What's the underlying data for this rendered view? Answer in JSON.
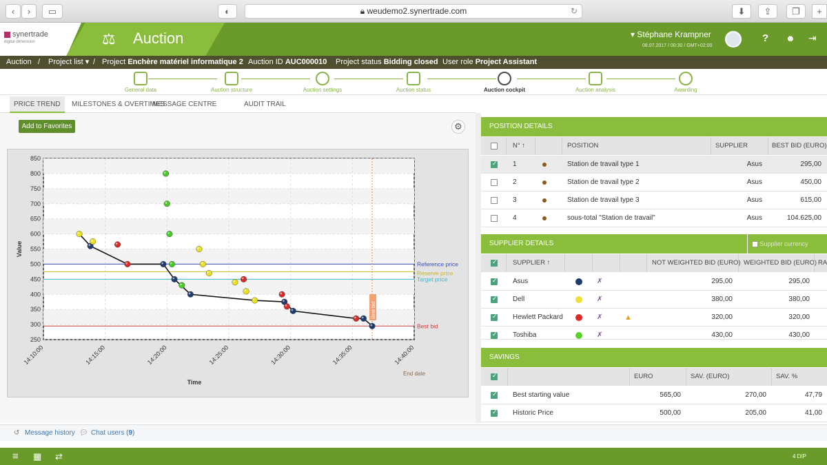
{
  "browser": {
    "url": "weudemo2.synertrade.com"
  },
  "header": {
    "logo": "synertrade",
    "logo_sub": "digital dimension",
    "module": "Auction",
    "user": "Stéphane Krampner",
    "datetime": "08.07.2017 / 00:30 / GMT+02:00"
  },
  "breadcrumb": {
    "root": "Auction",
    "sep": "/",
    "project_list": "Project list",
    "project_label": "Project",
    "project_value": "Enchère matériel informatique 2",
    "auction_id_label": "Auction ID",
    "auction_id_value": "AUC000010",
    "status_label": "Project status",
    "status_value": "Bidding closed",
    "role_label": "User role",
    "role_value": "Project Assistant"
  },
  "wizard": [
    "General data",
    "Auction structure",
    "Auction settings",
    "Auction status",
    "Auction cockpit",
    "Auction analysis",
    "Awarding"
  ],
  "tabs": [
    "PRICE TREND",
    "MILESTONES & OVERTIMES",
    "MESSAGE CENTRE",
    "AUDIT TRAIL"
  ],
  "favorites_button": "Add to Favorites",
  "chart_data": {
    "type": "scatter",
    "xlabel": "Time",
    "ylabel": "Value",
    "ylim": [
      250,
      850
    ],
    "yticks": [
      250,
      300,
      350,
      400,
      450,
      500,
      550,
      600,
      650,
      700,
      750,
      800,
      850
    ],
    "xticks": [
      "14:10:00",
      "14:15:00",
      "14:20:00",
      "14:25:00",
      "14:30:00",
      "14:35:00",
      "14:40:00"
    ],
    "reference_lines": [
      {
        "name": "Reference price",
        "value": 500,
        "color": "#3a4fb8"
      },
      {
        "name": "Reserve price",
        "value": 475,
        "color": "#c8b62a"
      },
      {
        "name": "Target price",
        "value": 450,
        "color": "#3ab8c8"
      },
      {
        "name": "Best bid",
        "value": 295,
        "color": "#c83a3a"
      }
    ],
    "end_label": "End date",
    "best_bid_vlabel": "Best bid",
    "series": [
      {
        "color": "#1f3c6e",
        "points": [
          [
            13.8,
            560
          ],
          [
            19.7,
            500
          ],
          [
            20.6,
            450
          ],
          [
            21.9,
            400
          ],
          [
            29.5,
            375
          ],
          [
            30.2,
            345
          ],
          [
            35.9,
            320
          ],
          [
            36.6,
            295
          ]
        ],
        "line": true
      },
      {
        "color": "#d42a2a",
        "points": [
          [
            16.0,
            565
          ],
          [
            16.8,
            500
          ],
          [
            26.2,
            450
          ],
          [
            29.3,
            400
          ],
          [
            29.7,
            360
          ],
          [
            35.3,
            320
          ]
        ]
      },
      {
        "color": "#e8e020",
        "points": [
          [
            12.9,
            600
          ],
          [
            14.0,
            575
          ],
          [
            22.6,
            550
          ],
          [
            22.9,
            500
          ],
          [
            23.4,
            470
          ],
          [
            25.5,
            440
          ],
          [
            26.4,
            410
          ],
          [
            27.1,
            380
          ]
        ]
      },
      {
        "color": "#4ac82a",
        "points": [
          [
            19.9,
            800
          ],
          [
            20.0,
            700
          ],
          [
            20.2,
            600
          ],
          [
            20.4,
            500
          ],
          [
            21.2,
            430
          ]
        ]
      }
    ],
    "best_line": [
      [
        12.9,
        600
      ],
      [
        13.8,
        560
      ],
      [
        16.8,
        500
      ],
      [
        19.7,
        500
      ],
      [
        20.6,
        450
      ],
      [
        21.9,
        400
      ],
      [
        27.1,
        380
      ],
      [
        29.5,
        375
      ],
      [
        30.2,
        345
      ],
      [
        35.3,
        320
      ],
      [
        35.9,
        320
      ],
      [
        36.6,
        295
      ]
    ]
  },
  "position": {
    "title": "POSITION DETAILS",
    "cols": [
      "N°",
      "POSITION",
      "SUPPLIER",
      "BEST BID (EURO)"
    ],
    "rows": [
      {
        "n": "1",
        "position": "Station de travail type 1",
        "supplier": "Asus",
        "bid": "295,00",
        "checked": true
      },
      {
        "n": "2",
        "position": "Station de travail type 2",
        "supplier": "Asus",
        "bid": "450,00",
        "checked": false
      },
      {
        "n": "3",
        "position": "Station de travail type 3",
        "supplier": "Asus",
        "bid": "615,00",
        "checked": false
      },
      {
        "n": "4",
        "position": "sous-total \"Station de travail\"",
        "supplier": "Asus",
        "bid": "104.625,00",
        "checked": false
      }
    ]
  },
  "supplier": {
    "title": "SUPPLIER DETAILS",
    "currency": "Supplier currency",
    "cols": [
      "SUPPLIER",
      "NOT WEIGHTED BID (EURO)",
      "WEIGHTED BID (EURO)",
      "RA"
    ],
    "rows": [
      {
        "name": "Asus",
        "color": "#1f3c6e",
        "nw": "295,00",
        "w": "295,00",
        "warn": false
      },
      {
        "name": "Dell",
        "color": "#f0e03a",
        "nw": "380,00",
        "w": "380,00",
        "warn": false
      },
      {
        "name": "Hewlett Packard",
        "color": "#e02a2a",
        "nw": "320,00",
        "w": "320,00",
        "warn": true
      },
      {
        "name": "Toshiba",
        "color": "#5ad02a",
        "nw": "430,00",
        "w": "430,00",
        "warn": false
      }
    ]
  },
  "savings": {
    "title": "SAVINGS",
    "cols": [
      "EURO",
      "SAV. (EURO)",
      "SAV. %"
    ],
    "rows": [
      {
        "label": "Best starting value",
        "euro": "565,00",
        "sav": "270,00",
        "pct": "47,79"
      },
      {
        "label": "Historic Price",
        "euro": "500,00",
        "sav": "205,00",
        "pct": "41,00"
      }
    ]
  },
  "messages": {
    "history": "Message history",
    "chat_label": "Chat users",
    "chat_count": "9"
  },
  "footer": {
    "right": "4 DIP"
  }
}
